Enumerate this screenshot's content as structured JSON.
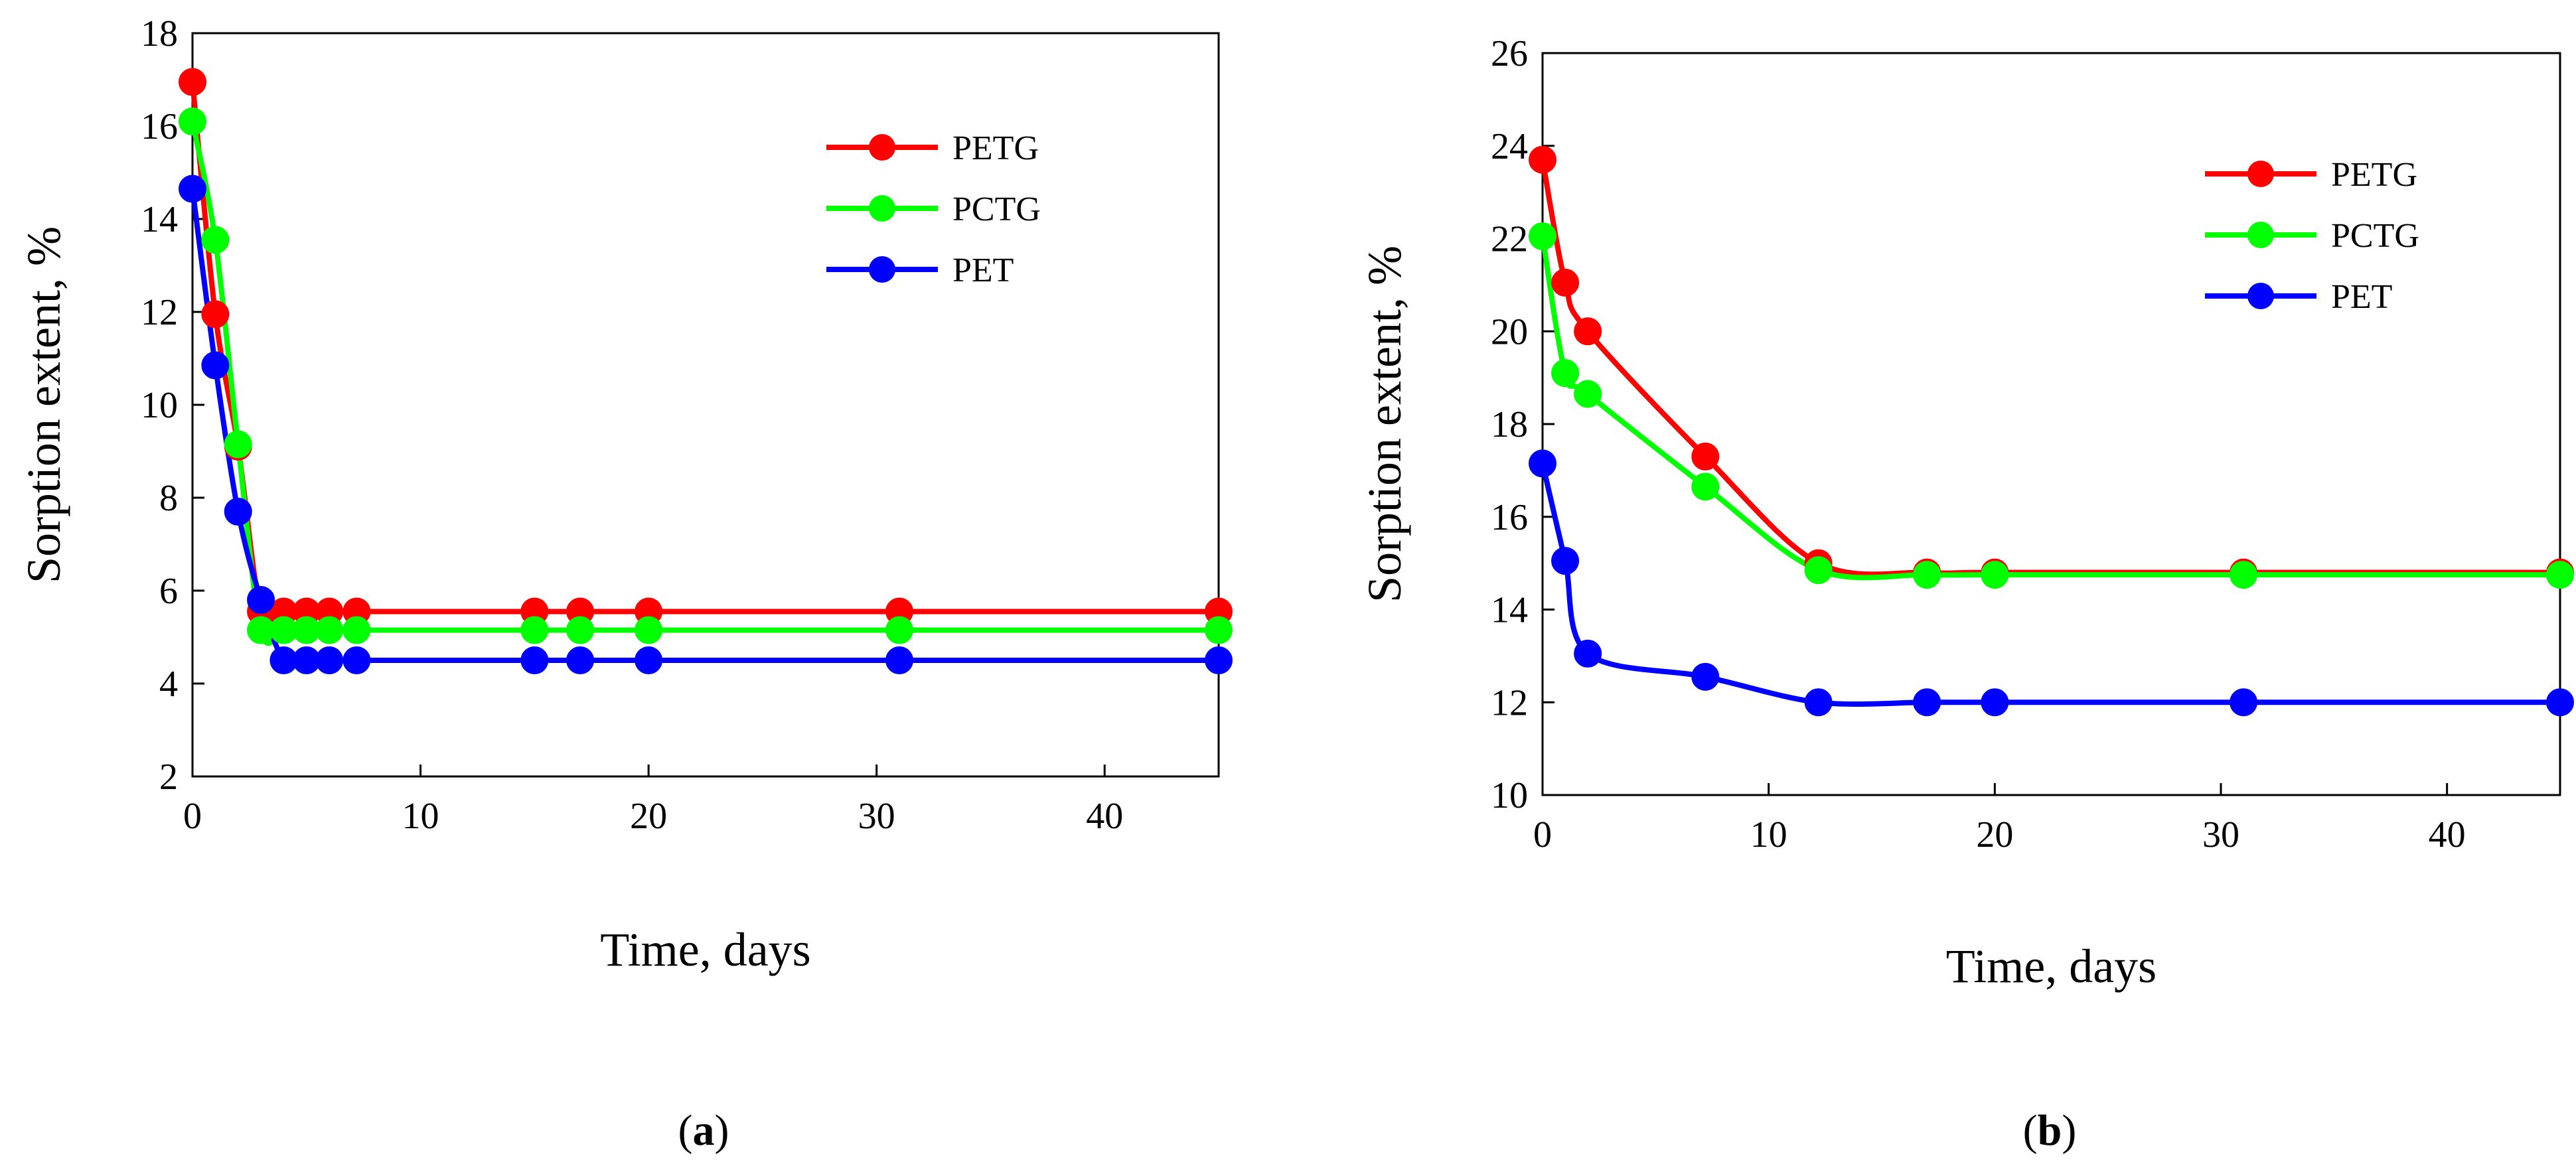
{
  "chart_data": [
    {
      "type": "line",
      "panel": "a",
      "panel_label": "a",
      "title": "",
      "xlabel": "Time, days",
      "ylabel": "Sorption extent, %",
      "xlim": [
        0,
        45
      ],
      "ylim": [
        2,
        18
      ],
      "xticks": [
        0,
        10,
        20,
        30,
        40
      ],
      "yticks": [
        2,
        4,
        6,
        8,
        10,
        12,
        14,
        16,
        18
      ],
      "grid": false,
      "legend_position": "top-right",
      "series": [
        {
          "name": "PETG",
          "color": "#ff0000",
          "x": [
            0,
            1,
            2,
            3,
            4,
            5,
            6,
            7.2,
            15,
            17,
            20,
            31,
            45
          ],
          "y": [
            16.95,
            11.95,
            9.1,
            5.55,
            5.55,
            5.55,
            5.55,
            5.55,
            5.55,
            5.55,
            5.55,
            5.55,
            5.55
          ]
        },
        {
          "name": "PCTG",
          "color": "#00ff00",
          "x": [
            0,
            1,
            2,
            3,
            4,
            5,
            6,
            7.2,
            15,
            17,
            20,
            31,
            45
          ],
          "y": [
            16.1,
            13.55,
            9.15,
            5.15,
            5.15,
            5.15,
            5.15,
            5.15,
            5.15,
            5.15,
            5.15,
            5.15,
            5.15
          ]
        },
        {
          "name": "PET",
          "color": "#0000ff",
          "x": [
            0,
            1,
            2,
            3,
            4,
            5,
            6,
            7.2,
            15,
            17,
            20,
            31,
            45
          ],
          "y": [
            14.65,
            10.85,
            7.7,
            5.8,
            4.5,
            4.5,
            4.5,
            4.5,
            4.5,
            4.5,
            4.5,
            4.5,
            4.5
          ]
        }
      ]
    },
    {
      "type": "line",
      "panel": "b",
      "panel_label": "b",
      "title": "",
      "xlabel": "Time, days",
      "ylabel": "Sorption extent, %",
      "xlim": [
        0,
        45
      ],
      "ylim": [
        10,
        26
      ],
      "xticks": [
        0,
        10,
        20,
        30,
        40
      ],
      "yticks": [
        10,
        12,
        14,
        16,
        18,
        20,
        22,
        24,
        26
      ],
      "grid": false,
      "legend_position": "top-right",
      "series": [
        {
          "name": "PETG",
          "color": "#ff0000",
          "x": [
            0,
            1,
            2,
            7.2,
            12.2,
            17,
            20,
            31,
            45
          ],
          "y": [
            23.7,
            21.05,
            20.0,
            17.3,
            15.0,
            14.8,
            14.8,
            14.8,
            14.8
          ]
        },
        {
          "name": "PCTG",
          "color": "#00ff00",
          "x": [
            0,
            1,
            2,
            7.2,
            12.2,
            17,
            20,
            31,
            45
          ],
          "y": [
            22.05,
            19.1,
            18.65,
            16.65,
            14.85,
            14.75,
            14.75,
            14.75,
            14.75
          ]
        },
        {
          "name": "PET",
          "color": "#0000ff",
          "x": [
            0,
            1,
            2,
            7.2,
            12.2,
            17,
            20,
            31,
            45
          ],
          "y": [
            17.15,
            15.05,
            13.05,
            12.55,
            12.0,
            12.0,
            12.0,
            12.0,
            12.0
          ]
        }
      ]
    }
  ]
}
